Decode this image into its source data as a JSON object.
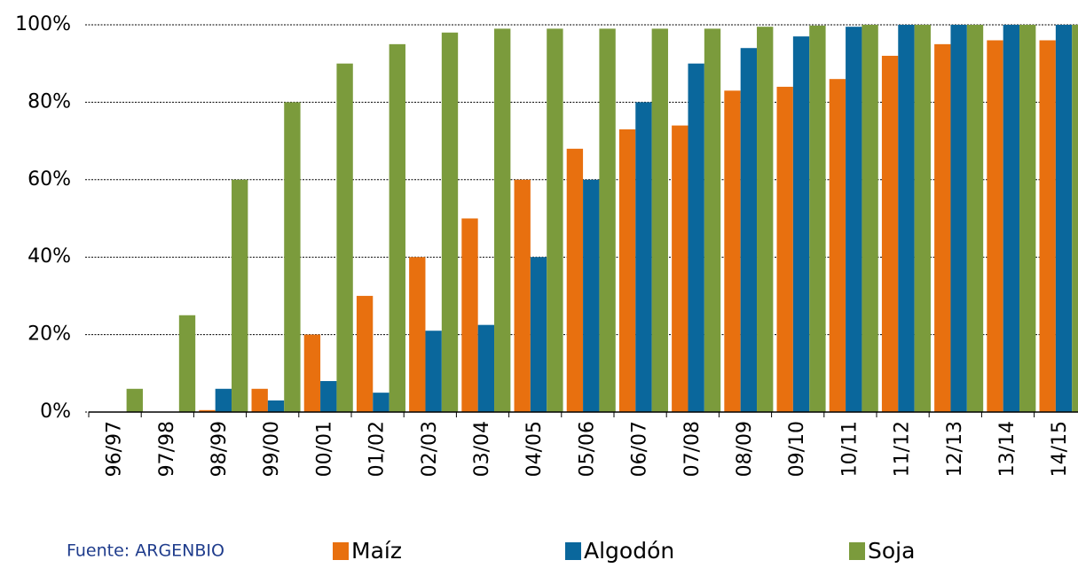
{
  "chart_data": {
    "type": "bar",
    "source": "Fuente: ARGENBIO",
    "categories": [
      "96/97",
      "97/98",
      "98/99",
      "99/00",
      "00/01",
      "01/02",
      "02/03",
      "03/04",
      "04/05",
      "05/06",
      "06/07",
      "07/08",
      "08/09",
      "09/10",
      "10/11",
      "11/12",
      "12/13",
      "13/14",
      "14/15"
    ],
    "series": [
      {
        "name": "Maíz",
        "color": "#e8700f",
        "values": [
          0,
          0,
          0.5,
          6,
          20,
          30,
          40,
          50,
          60,
          68,
          73,
          74,
          83,
          84,
          86,
          92,
          95,
          96,
          96
        ]
      },
      {
        "name": "Algodón",
        "color": "#0a679c",
        "values": [
          0,
          0,
          6,
          3,
          8,
          5,
          21,
          22.5,
          40,
          60,
          80,
          90,
          94,
          97,
          99.5,
          100,
          100,
          100,
          100
        ]
      },
      {
        "name": "Soja",
        "color": "#7b9b3c",
        "values": [
          6,
          25,
          60,
          80,
          90,
          95,
          98,
          99,
          99,
          99,
          99,
          99,
          99.5,
          99.8,
          100,
          100,
          100,
          100,
          100
        ]
      }
    ],
    "ylim": [
      0,
      100
    ],
    "yticks": [
      {
        "value": 0,
        "label": "0%"
      },
      {
        "value": 20,
        "label": "20%"
      },
      {
        "value": 40,
        "label": "40%"
      },
      {
        "value": 60,
        "label": "60%"
      },
      {
        "value": 80,
        "label": "80%"
      },
      {
        "value": 100,
        "label": "100%"
      }
    ],
    "grid": true
  }
}
